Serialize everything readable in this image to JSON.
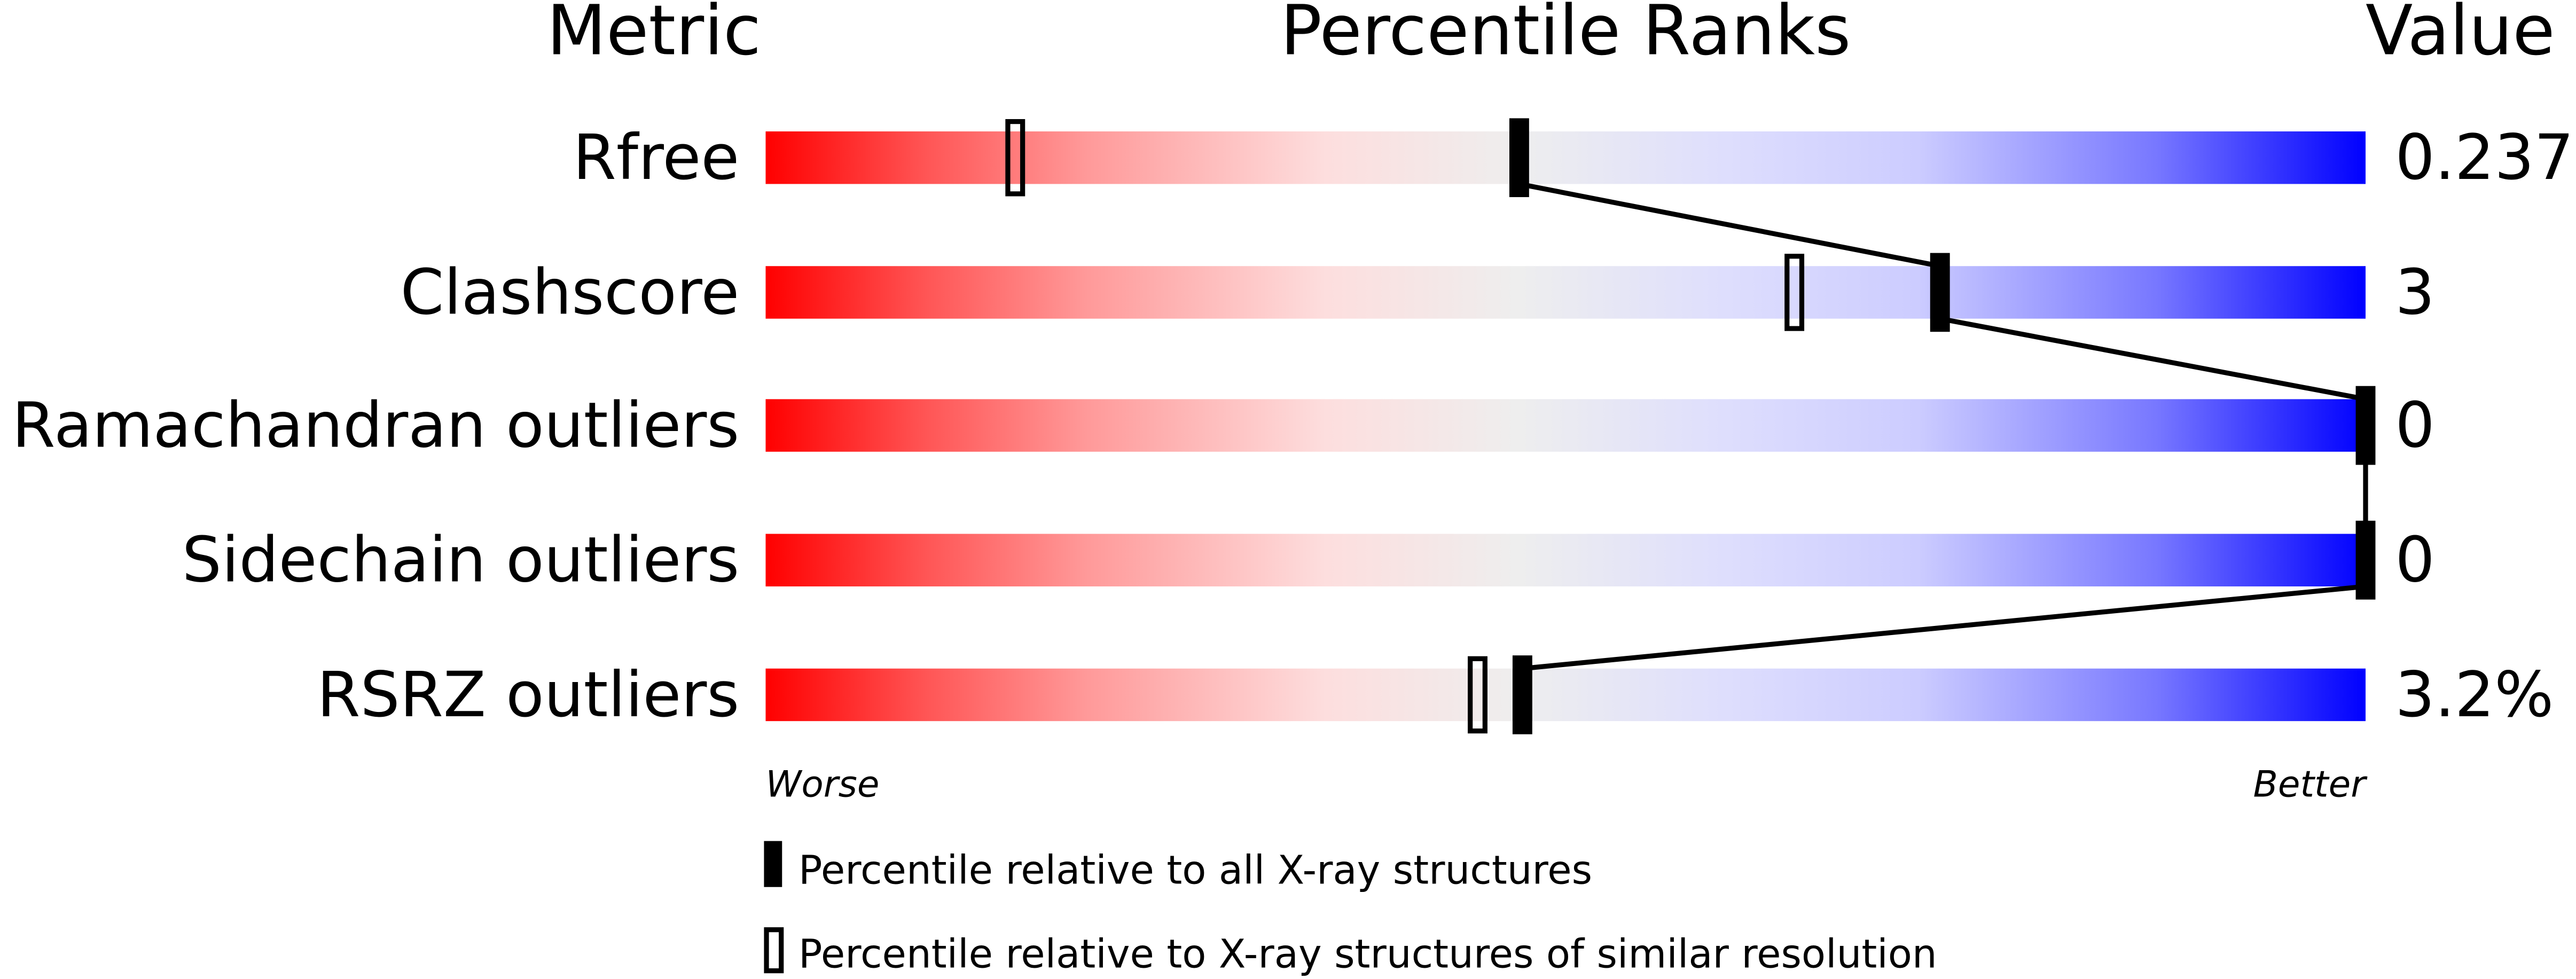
{
  "chart_data": {
    "type": "percentile-ranks",
    "headers": {
      "metric": "Metric",
      "ranks": "Percentile Ranks",
      "value": "Value"
    },
    "xlim": [
      0,
      100
    ],
    "rows": [
      {
        "metric": "Rfree",
        "value": "0.237",
        "percentile_all": 47.1,
        "percentile_similar": 15.6
      },
      {
        "metric": "Clashscore",
        "value": "3",
        "percentile_all": 73.4,
        "percentile_similar": 64.3
      },
      {
        "metric": "Ramachandran outliers",
        "value": "0",
        "percentile_all": 100,
        "percentile_similar": null
      },
      {
        "metric": "Sidechain outliers",
        "value": "0",
        "percentile_all": 100,
        "percentile_similar": null
      },
      {
        "metric": "RSRZ outliers",
        "value": "3.2%",
        "percentile_all": 47.3,
        "percentile_similar": 44.5
      }
    ],
    "axis": {
      "left_label": "Worse",
      "right_label": "Better"
    },
    "legend": [
      {
        "marker": "filled",
        "label": "Percentile relative to all X-ray structures"
      },
      {
        "marker": "hollow",
        "label": "Percentile relative to X-ray structures of similar resolution"
      }
    ],
    "colors": {
      "worse": "#ff0000",
      "mid": "#eeeeee",
      "better": "#0000ff"
    }
  }
}
